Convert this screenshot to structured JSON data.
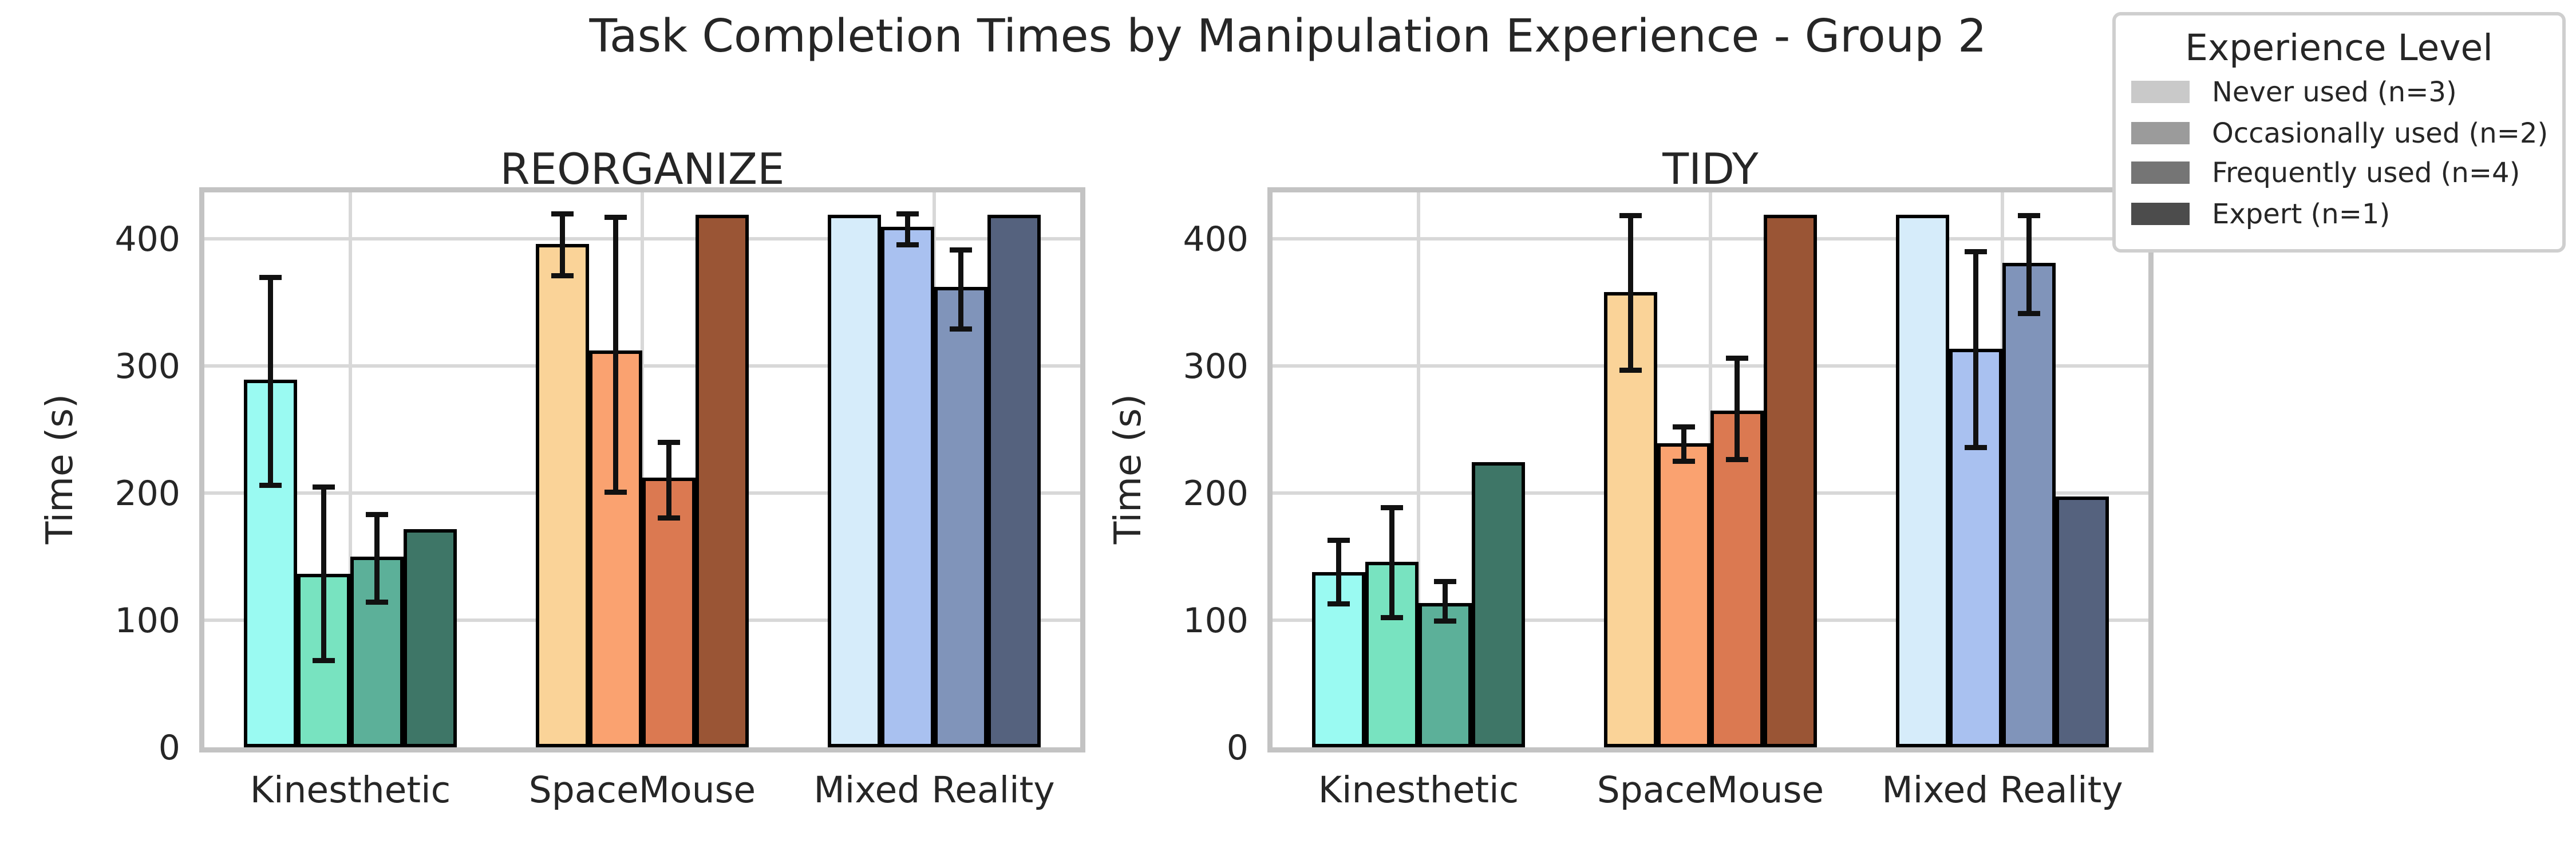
{
  "figure": {
    "title": "Task Completion Times by Manipulation Experience - Group 2",
    "background": "#ffffff",
    "text_color": "#262626",
    "grid_color": "#d8d8d8",
    "spine_color": "#c3c3c3",
    "bar_edge_color": "#000000",
    "error_bar_color": "#111111"
  },
  "legend": {
    "title": "Experience Level",
    "items": [
      {
        "label": "Never used (n=3)",
        "color": "#c9c9c9"
      },
      {
        "label": "Occasionally used (n=2)",
        "color": "#9b9b9b"
      },
      {
        "label": "Frequently used (n=4)",
        "color": "#757575"
      },
      {
        "label": "Expert (n=1)",
        "color": "#4c4c4c"
      }
    ]
  },
  "palette": {
    "Kinesthetic": [
      "#9afaf2",
      "#78e3c0",
      "#5cb099",
      "#3e7667"
    ],
    "SpaceMouse": [
      "#fad398",
      "#faa270",
      "#db7951",
      "#9a5535"
    ],
    "Mixed Reality": [
      "#d6ecfa",
      "#a9c1f0",
      "#8094ba",
      "#55627e"
    ]
  },
  "chart_data": [
    {
      "type": "bar",
      "title": "REORGANIZE",
      "xlabel": "",
      "ylabel": "Time (s)",
      "ylim": [
        0,
        437
      ],
      "yticks": [
        0,
        100,
        200,
        300,
        400
      ],
      "grid": true,
      "legend_position": "figure-top-right",
      "categories": [
        "Kinesthetic",
        "SpaceMouse",
        "Mixed Reality"
      ],
      "series": [
        {
          "name": "Never used (n=3)",
          "values": [
            289,
            397,
            420
          ],
          "err_low": [
            206,
            372,
            null
          ],
          "err_high": [
            370,
            420,
            null
          ]
        },
        {
          "name": "Occasionally used (n=2)",
          "values": [
            136,
            312,
            410
          ],
          "err_low": [
            68,
            201,
            396
          ],
          "err_high": [
            205,
            418,
            420
          ]
        },
        {
          "name": "Frequently used (n=4)",
          "values": [
            150,
            212,
            363
          ],
          "err_low": [
            114,
            180,
            330
          ],
          "err_high": [
            184,
            240,
            392
          ]
        },
        {
          "name": "Expert (n=1)",
          "values": [
            172,
            420,
            420
          ],
          "err_low": [
            null,
            null,
            null
          ],
          "err_high": [
            null,
            null,
            null
          ]
        }
      ]
    },
    {
      "type": "bar",
      "title": "TIDY",
      "xlabel": "",
      "ylabel": "Time (s)",
      "ylim": [
        0,
        437
      ],
      "yticks": [
        0,
        100,
        200,
        300,
        400
      ],
      "grid": true,
      "legend_position": "figure-top-right",
      "categories": [
        "Kinesthetic",
        "SpaceMouse",
        "Mixed Reality"
      ],
      "series": [
        {
          "name": "Never used (n=3)",
          "values": [
            138,
            358,
            420
          ],
          "err_low": [
            113,
            297,
            null
          ],
          "err_high": [
            163,
            419,
            null
          ]
        },
        {
          "name": "Occasionally used (n=2)",
          "values": [
            146,
            239,
            314
          ],
          "err_low": [
            102,
            225,
            236
          ],
          "err_high": [
            189,
            252,
            391
          ]
        },
        {
          "name": "Frequently used (n=4)",
          "values": [
            114,
            265,
            381
          ],
          "err_low": [
            99,
            226,
            341
          ],
          "err_high": [
            130,
            306,
            419
          ]
        },
        {
          "name": "Expert (n=1)",
          "values": [
            224,
            420,
            197
          ],
          "err_low": [
            null,
            null,
            null
          ],
          "err_high": [
            null,
            null,
            null
          ]
        }
      ]
    }
  ]
}
